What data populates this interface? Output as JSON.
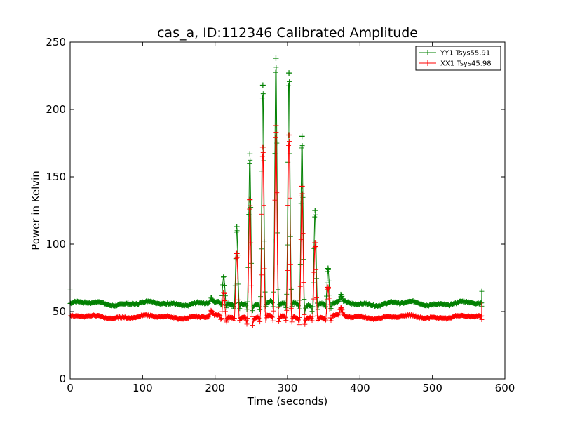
{
  "chart_data": {
    "type": "line",
    "title": "cas_a, ID:112346 Calibrated Amplitude",
    "xlabel": "Time (seconds)",
    "ylabel": "Power in Kelvin",
    "xlim": [
      0,
      600
    ],
    "ylim": [
      0,
      250
    ],
    "xticks": [
      "0",
      "100",
      "200",
      "300",
      "400",
      "500",
      "600"
    ],
    "yticks": [
      "0",
      "50",
      "100",
      "150",
      "200",
      "250"
    ],
    "grid": false,
    "legend_position": "top-right",
    "marker": "+",
    "series": [
      {
        "name": "YY1 Tsys55.91",
        "color": "#008000",
        "baseline": 56,
        "baseline_ripple": 1.2,
        "x_start": 0,
        "x_end": 568,
        "start_spike": 66,
        "end_spike": 65,
        "peaks": [
          {
            "t": 195,
            "v": 60
          },
          {
            "t": 212,
            "v": 76
          },
          {
            "t": 230,
            "v": 113
          },
          {
            "t": 248,
            "v": 167
          },
          {
            "t": 266,
            "v": 218
          },
          {
            "t": 284,
            "v": 238
          },
          {
            "t": 302,
            "v": 227
          },
          {
            "t": 320,
            "v": 180
          },
          {
            "t": 338,
            "v": 125
          },
          {
            "t": 356,
            "v": 82
          },
          {
            "t": 374,
            "v": 61
          }
        ]
      },
      {
        "name": "XX1 Tsys45.98",
        "color": "#ff0000",
        "baseline": 46,
        "baseline_ripple": 1.0,
        "x_start": 0,
        "x_end": 568,
        "start_spike": 55,
        "end_spike": 55,
        "peaks": [
          {
            "t": 195,
            "v": 50
          },
          {
            "t": 212,
            "v": 64
          },
          {
            "t": 230,
            "v": 93
          },
          {
            "t": 248,
            "v": 133
          },
          {
            "t": 266,
            "v": 172
          },
          {
            "t": 284,
            "v": 188
          },
          {
            "t": 302,
            "v": 181
          },
          {
            "t": 320,
            "v": 143
          },
          {
            "t": 338,
            "v": 101
          },
          {
            "t": 356,
            "v": 68
          },
          {
            "t": 374,
            "v": 52
          }
        ]
      }
    ]
  }
}
